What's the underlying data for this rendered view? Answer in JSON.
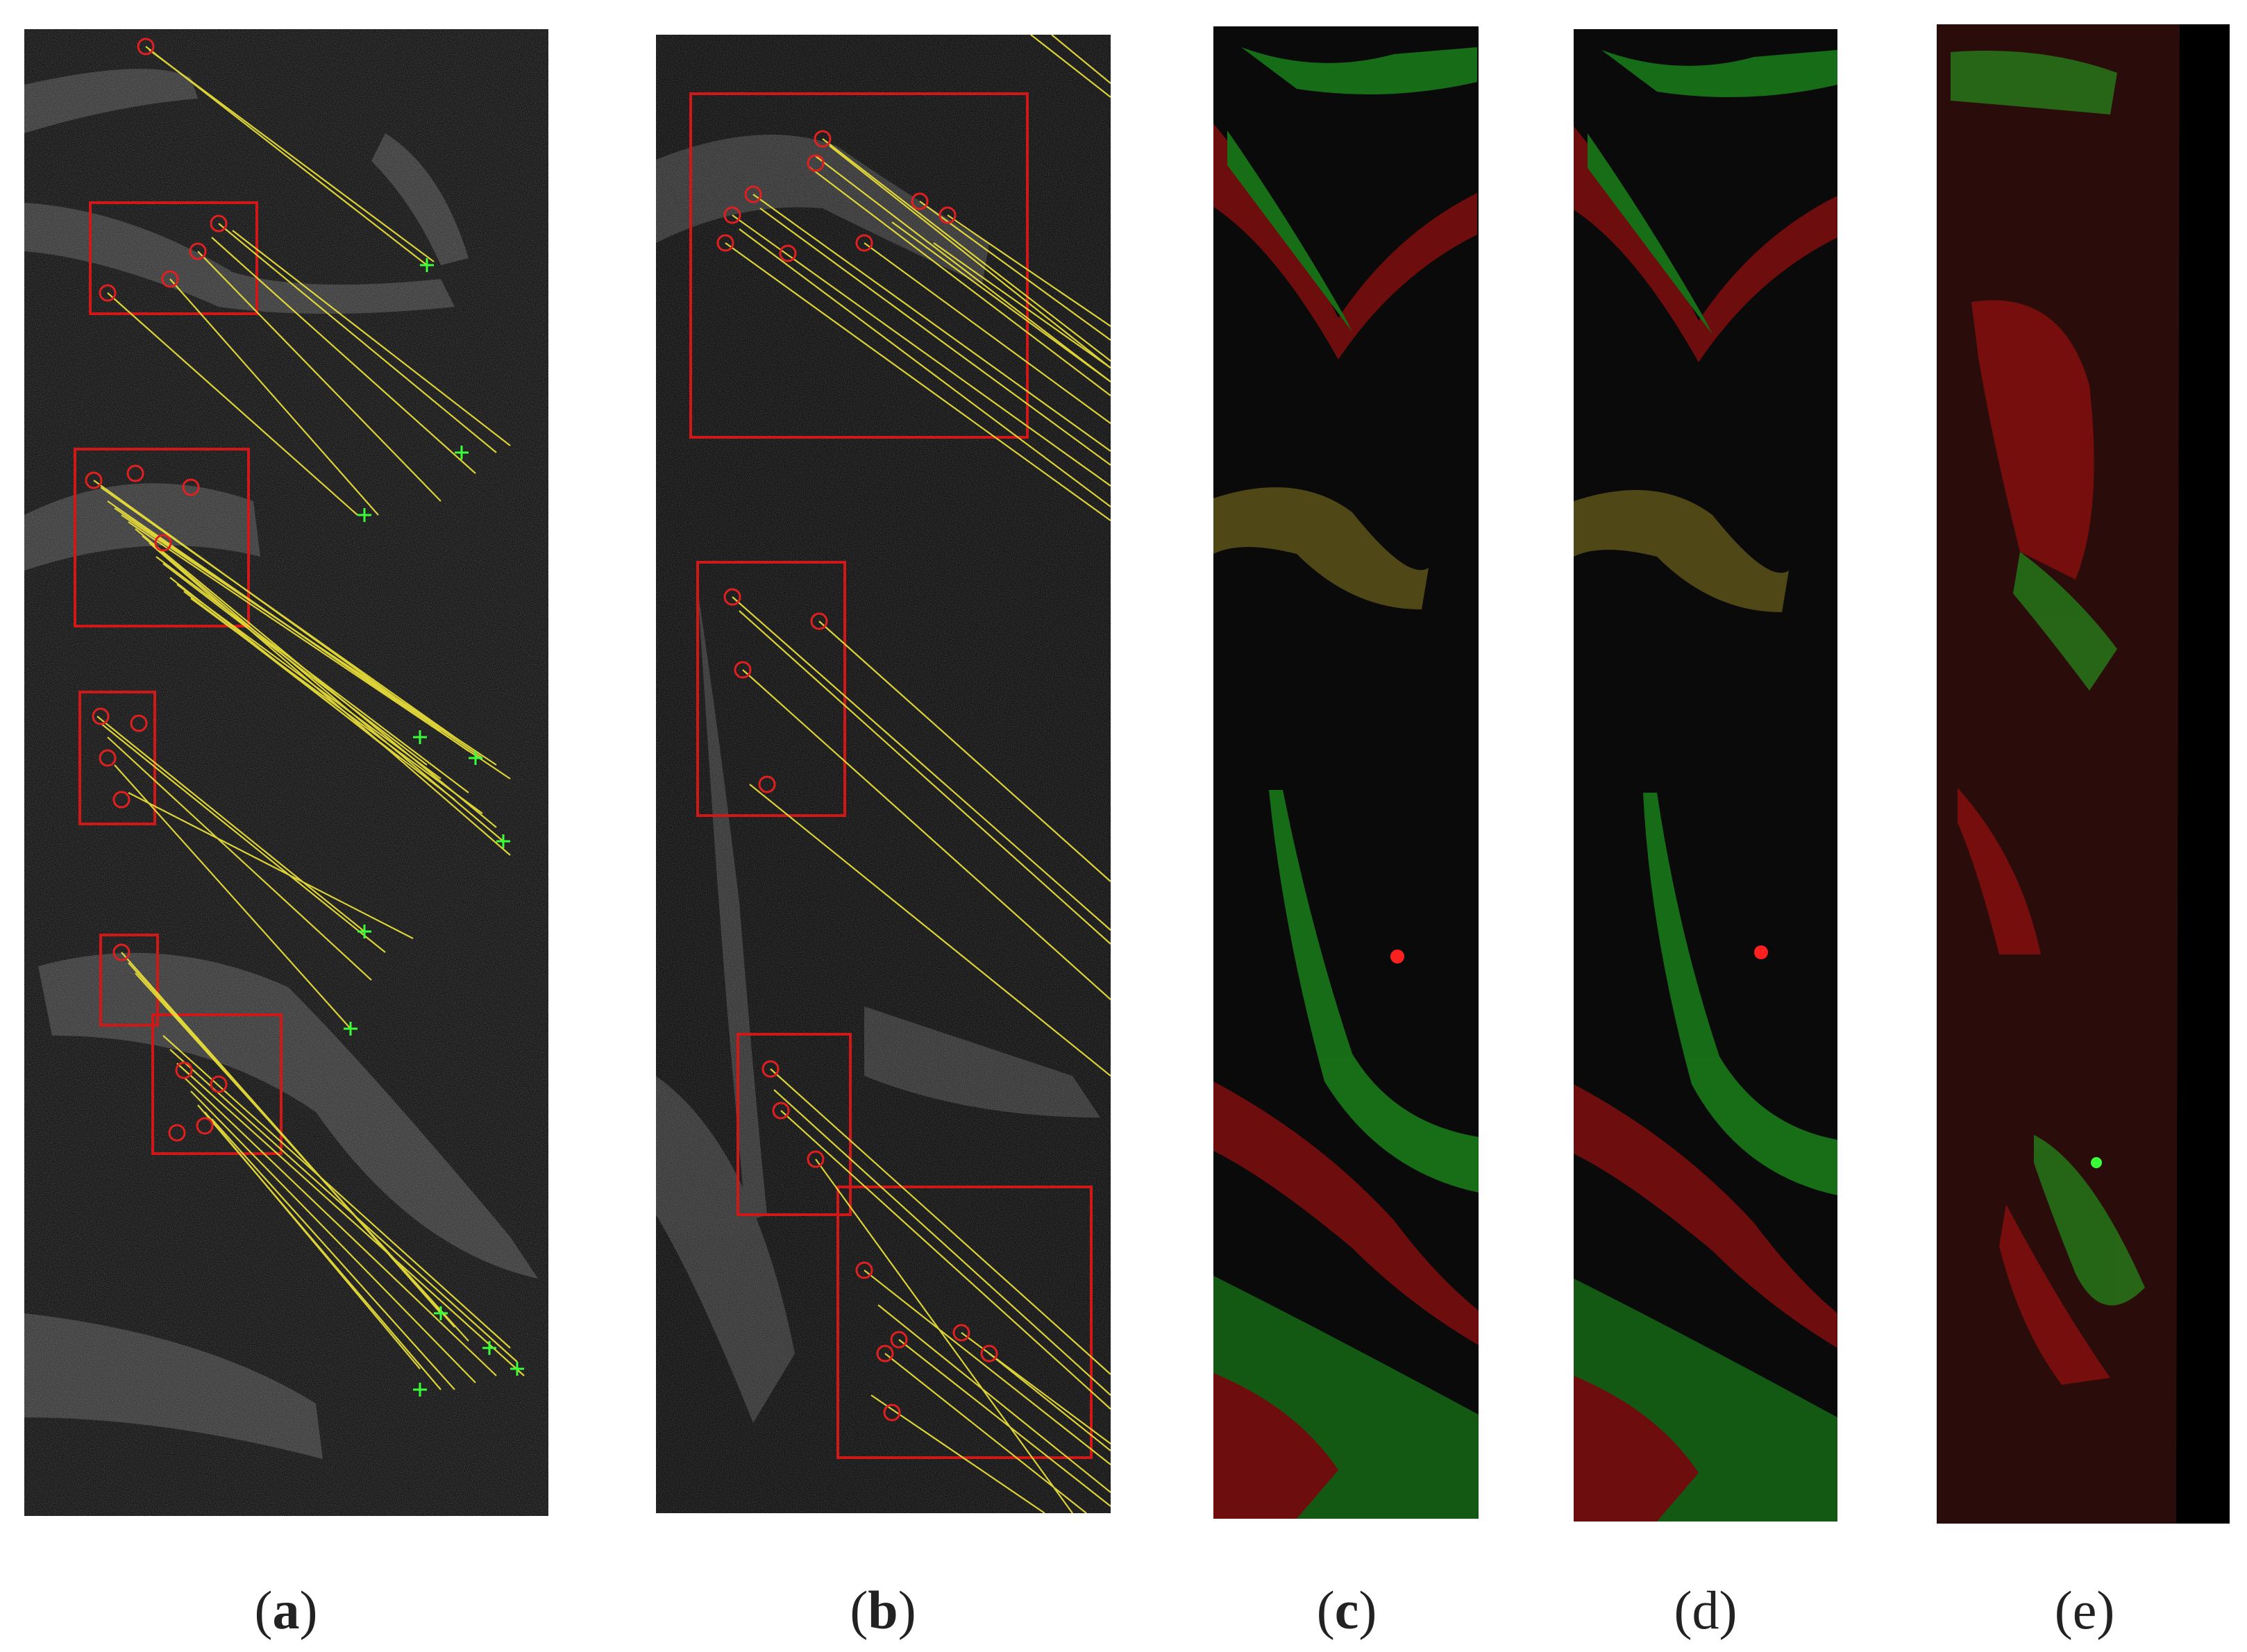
{
  "figure": {
    "panels": [
      {
        "id": "a",
        "letter": "a",
        "kind": "grayscale feature matching with red boxes, red circles and green markers, yellow match lines"
      },
      {
        "id": "b",
        "letter": "b",
        "kind": "grayscale feature matching with red boxes and yellow match lines"
      },
      {
        "id": "c",
        "letter": "c",
        "kind": "red-green overlay"
      },
      {
        "id": "d",
        "letter": "d",
        "kind": "red-green overlay"
      },
      {
        "id": "e",
        "letter": "e",
        "kind": "red-green overlay"
      }
    ],
    "caption_parens": {
      "open": "(",
      "close": ")"
    }
  },
  "colors": {
    "box": "#d01818",
    "keypoint": "#e02020",
    "match_line": "#f0e63a",
    "match_marker": "#38ff38",
    "overlay_red": "#c01010",
    "overlay_green": "#22c022",
    "background": "#ffffff"
  }
}
